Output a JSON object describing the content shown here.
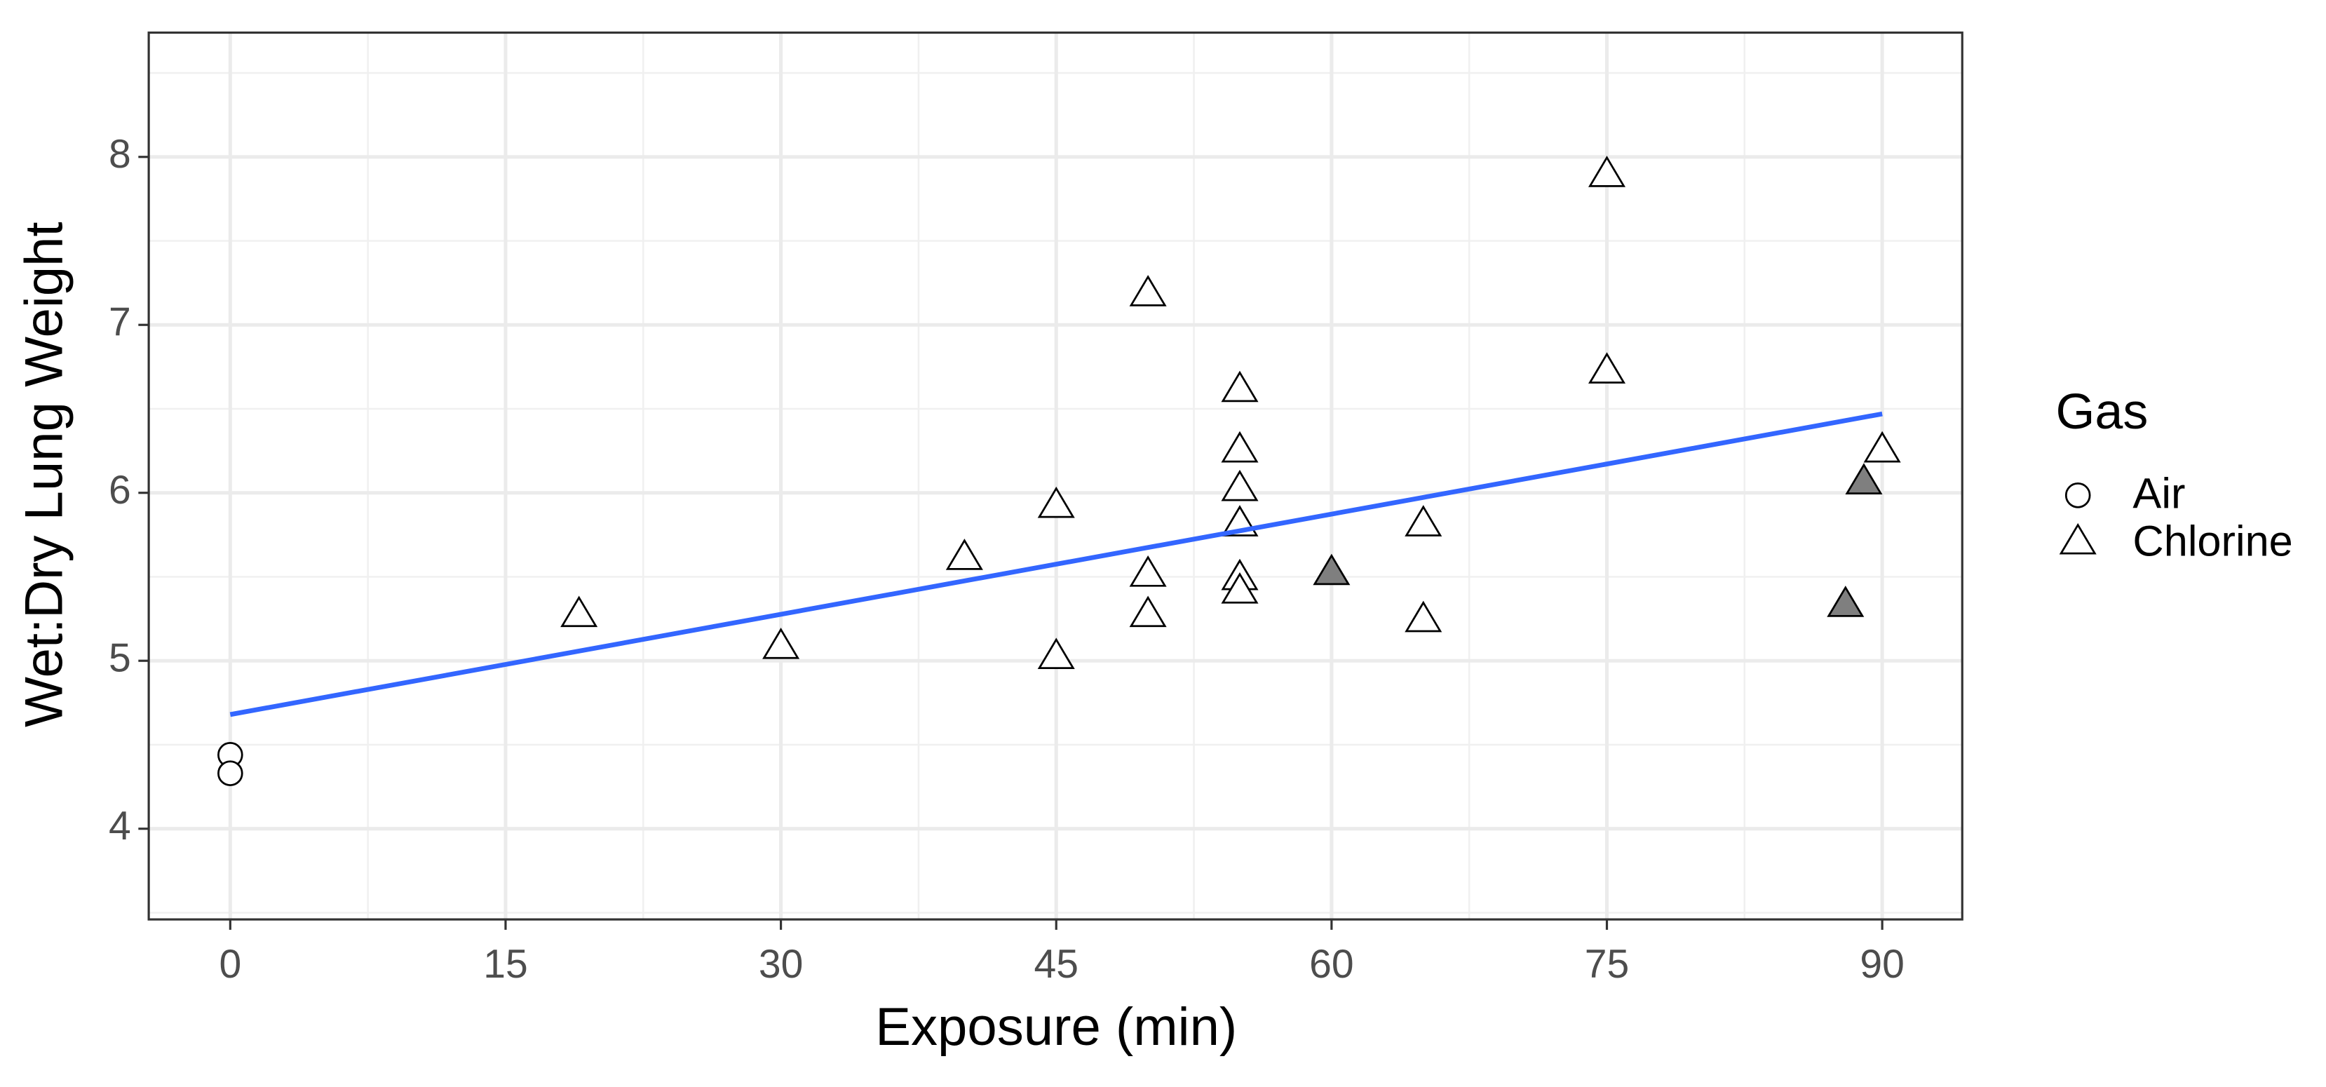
{
  "chart_data": {
    "type": "scatter",
    "x_label": "Exposure (min)",
    "y_label": "Wet:Dry Lung Weight",
    "xlim": [
      -4.44,
      94.36
    ],
    "ylim": [
      3.46,
      8.74
    ],
    "xticks": [
      0,
      15,
      30,
      45,
      60,
      75,
      90
    ],
    "yticks": [
      4,
      5,
      6,
      7,
      8
    ],
    "xminor": [
      7.5,
      22.5,
      37.5,
      52.5,
      67.5,
      82.5
    ],
    "yminor": [
      3.5,
      4.5,
      5.5,
      6.5,
      7.5,
      8.5
    ],
    "grid": true,
    "legend_title": "Gas",
    "legend_position": "right",
    "series": [
      {
        "name": "Air",
        "marker": "circle",
        "color": "#000000",
        "x": [
          0,
          0
        ],
        "values": [
          4.44,
          4.33
        ],
        "point_fills": [
          "#ffffff",
          "#ffffff"
        ]
      },
      {
        "name": "Chlorine",
        "marker": "triangle",
        "color": "#000000",
        "x": [
          19,
          30,
          40,
          45,
          45,
          50,
          50,
          50,
          55,
          55,
          55,
          55,
          55,
          55,
          60,
          65,
          65,
          75,
          75,
          88,
          89,
          90
        ],
        "values": [
          5.27,
          5.08,
          5.61,
          5.92,
          5.02,
          7.18,
          5.51,
          5.27,
          6.61,
          6.25,
          6.02,
          5.81,
          5.49,
          5.41,
          5.52,
          5.81,
          5.24,
          7.89,
          6.72,
          5.33,
          6.06,
          6.25
        ],
        "point_fills": [
          "#ffffff",
          "#ffffff",
          "#ffffff",
          "#ffffff",
          "#ffffff",
          "#ffffff",
          "#ffffff",
          "#ffffff",
          "#ffffff",
          "#ffffff",
          "#ffffff",
          "#ffffff",
          "#ffffff",
          "#ffffff",
          "#7f7f7f",
          "#ffffff",
          "#ffffff",
          "#ffffff",
          "#ffffff",
          "#7f7f7f",
          "#7f7f7f",
          "#ffffff"
        ]
      }
    ],
    "fit_line": {
      "x": [
        0,
        90
      ],
      "y": [
        4.68,
        6.47
      ],
      "color": "#3366ff"
    }
  }
}
